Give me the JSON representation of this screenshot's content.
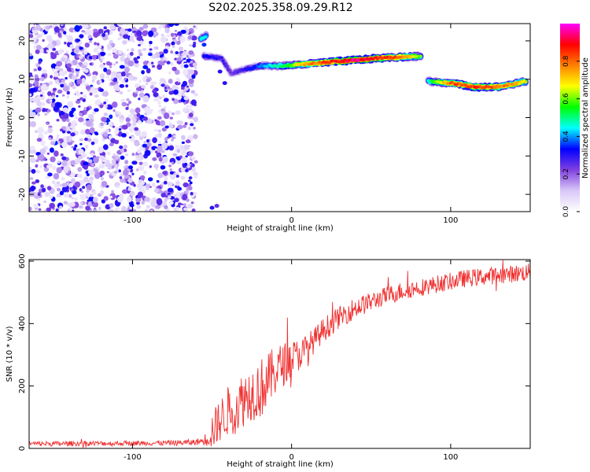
{
  "title": "S202.2025.358.09.29.R12",
  "chart_data": [
    {
      "type": "heatmap",
      "name": "spectrogram",
      "xlabel": "Height of straight line (km)",
      "ylabel": "Frequency (Hz)",
      "xlim": [
        -165,
        150
      ],
      "ylim": [
        -24.5,
        24.5
      ],
      "x_ticks": [
        -100,
        0,
        100
      ],
      "y_ticks": [
        -20,
        -10,
        0,
        10,
        20
      ],
      "noise_region_x": [
        -165,
        -60
      ],
      "noise_level": [
        0.05,
        0.35
      ],
      "ridge": [
        {
          "x": -57,
          "y": 20.5,
          "amp": 0.5
        },
        {
          "x": -53,
          "y": 21.5,
          "amp": 0.45
        },
        {
          "x": -55,
          "y": 16.0,
          "amp": 0.35
        },
        {
          "x": -44,
          "y": 15.5,
          "amp": 0.3
        },
        {
          "x": -38,
          "y": 11.5,
          "amp": 0.25
        },
        {
          "x": -30,
          "y": 12.5,
          "amp": 0.3
        },
        {
          "x": -20,
          "y": 13.5,
          "amp": 0.4
        },
        {
          "x": -5,
          "y": 13.5,
          "amp": 0.55
        },
        {
          "x": 10,
          "y": 14.0,
          "amp": 0.8
        },
        {
          "x": 25,
          "y": 14.5,
          "amp": 0.9
        },
        {
          "x": 40,
          "y": 15.0,
          "amp": 1.0
        },
        {
          "x": 55,
          "y": 15.5,
          "amp": 0.9
        },
        {
          "x": 70,
          "y": 15.8,
          "amp": 0.85
        },
        {
          "x": 82,
          "y": 16.0,
          "amp": 0.6
        },
        {
          "x": 86,
          "y": 9.5,
          "amp": 0.5
        },
        {
          "x": 100,
          "y": 9.0,
          "amp": 0.85
        },
        {
          "x": 115,
          "y": 8.0,
          "amp": 0.9
        },
        {
          "x": 130,
          "y": 8.0,
          "amp": 0.85
        },
        {
          "x": 148,
          "y": 9.5,
          "amp": 0.7
        }
      ]
    },
    {
      "type": "line",
      "name": "snr",
      "xlabel": "Height of straight line (km)",
      "ylabel": "SNR (10 * v/v)",
      "xlim": [
        -165,
        150
      ],
      "ylim": [
        0,
        605
      ],
      "x_ticks": [
        -100,
        0,
        100
      ],
      "y_ticks": [
        0,
        200,
        400,
        600
      ],
      "color": "#f03030",
      "x": [
        -165,
        -150,
        -130,
        -110,
        -90,
        -70,
        -60,
        -55,
        -50,
        -45,
        -40,
        -35,
        -30,
        -25,
        -20,
        -15,
        -10,
        -5,
        0,
        5,
        10,
        15,
        20,
        30,
        40,
        50,
        60,
        70,
        80,
        90,
        100,
        110,
        120,
        130,
        140,
        150
      ],
      "y": [
        15,
        15,
        16,
        16,
        17,
        18,
        20,
        25,
        55,
        90,
        120,
        135,
        160,
        180,
        190,
        215,
        250,
        270,
        290,
        300,
        325,
        350,
        380,
        420,
        450,
        470,
        490,
        505,
        515,
        525,
        535,
        545,
        550,
        555,
        560,
        565
      ],
      "noise": [
        8,
        8,
        8,
        8,
        8,
        9,
        10,
        15,
        60,
        70,
        80,
        90,
        90,
        90,
        100,
        90,
        80,
        70,
        60,
        50,
        45,
        40,
        40,
        35,
        35,
        30,
        30,
        30,
        28,
        28,
        28,
        28,
        28,
        28,
        28,
        28
      ]
    }
  ],
  "colorbar": {
    "label": "Normalized spectral amplitude",
    "ticks": [
      "0.0",
      "0.2",
      "0.4",
      "0.6",
      "0.8"
    ],
    "range": [
      0,
      1
    ],
    "stops": [
      "#ffffff",
      "#d8c8f8",
      "#8040e0",
      "#0000ff",
      "#00ffff",
      "#00ff00",
      "#ffff00",
      "#ff8000",
      "#ff0000",
      "#ff00ff"
    ]
  }
}
